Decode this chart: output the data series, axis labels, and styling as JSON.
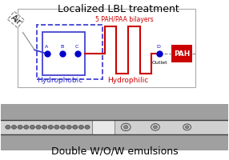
{
  "title_top": "Localized LBL treatment",
  "title_bottom": "Double W/O/W emulsions",
  "label_5bilayers": "5 PAH/PAA bilayers",
  "label_hydrophobic": "Hydrophobic",
  "label_hydrophilic": "Hydrophilic",
  "label_outlet": "Outlet",
  "label_pah": "PAH",
  "label_air": "Air",
  "dot_labels": [
    "A",
    "B",
    "C",
    "D"
  ],
  "bg_color": "#ffffff",
  "blue_color": "#3333cc",
  "red_color": "#cc0000",
  "dot_color": "#0000cc",
  "pah_box_color": "#cc0000",
  "pah_text_color": "#ffffff",
  "title_fontsize": 9,
  "label_fontsize": 6.5,
  "small_fontsize": 5.5
}
